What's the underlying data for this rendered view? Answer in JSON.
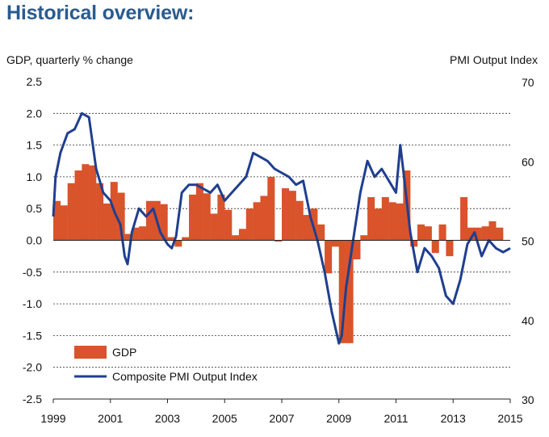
{
  "header": {
    "title": "Historical overview:"
  },
  "chart_data": {
    "type": "bar+line",
    "y_left_label": "GDP, quarterly % change",
    "y_right_label": "PMI Output  Index",
    "ylim_left": [
      -2.5,
      2.5
    ],
    "ylim_right": [
      30,
      70
    ],
    "xlim": [
      1999,
      2015
    ],
    "x_ticks": [
      1999,
      2001,
      2003,
      2005,
      2007,
      2009,
      2011,
      2013,
      2015
    ],
    "y_left_ticks": [
      "2.5",
      "2.0",
      "1.5",
      "1.0",
      "0.5",
      "0.0",
      "-0.5",
      "-1.0",
      "-1.5",
      "-2.0",
      "-2.5"
    ],
    "y_right_ticks": [
      "70",
      "60",
      "50",
      "40",
      "30"
    ],
    "grid": "horizontal dashed",
    "legend": {
      "position": "bottom-left",
      "gdp_label": "GDP",
      "pmi_label": "Composite PMI Output Index"
    },
    "colors": {
      "gdp": "#d9532b",
      "pmi": "#1f3f8e",
      "title": "#2a5b8f"
    },
    "series": [
      {
        "name": "GDP",
        "kind": "bar",
        "axis": "left",
        "start": 1999,
        "frequency": "quarterly",
        "values": [
          0.62,
          0.55,
          0.9,
          1.1,
          1.2,
          1.18,
          0.9,
          0.58,
          0.92,
          0.75,
          0.1,
          0.2,
          0.22,
          0.62,
          0.62,
          0.57,
          0.05,
          -0.1,
          0.05,
          0.72,
          0.9,
          0.74,
          0.42,
          0.72,
          0.48,
          0.08,
          0.18,
          0.5,
          0.6,
          0.7,
          1.0,
          -0.02,
          0.82,
          0.78,
          0.62,
          0.4,
          0.5,
          0.25,
          -0.52,
          -0.1,
          -1.62,
          -1.62,
          -0.3,
          0.08,
          0.68,
          0.5,
          0.68,
          0.6,
          0.58,
          1.1,
          -0.1,
          0.25,
          0.22,
          -0.2,
          0.25,
          -0.25,
          0.0,
          0.68,
          0.2,
          0.2,
          0.22,
          0.3,
          0.2
        ]
      },
      {
        "name": "Composite PMI Output Index",
        "kind": "line",
        "axis": "right",
        "x": [
          1999.0,
          1999.08,
          1999.25,
          1999.5,
          1999.75,
          2000.0,
          2000.25,
          2000.5,
          2000.75,
          2001.0,
          2001.15,
          2001.35,
          2001.5,
          2001.6,
          2001.75,
          2002.0,
          2002.25,
          2002.5,
          2002.75,
          2003.0,
          2003.15,
          2003.3,
          2003.5,
          2003.75,
          2004.0,
          2004.25,
          2004.5,
          2004.75,
          2005.0,
          2005.25,
          2005.5,
          2005.75,
          2006.0,
          2006.25,
          2006.5,
          2006.75,
          2007.0,
          2007.25,
          2007.5,
          2007.75,
          2008.0,
          2008.25,
          2008.5,
          2008.75,
          2009.0,
          2009.1,
          2009.25,
          2009.5,
          2009.75,
          2010.0,
          2010.25,
          2010.5,
          2010.75,
          2011.0,
          2011.15,
          2011.25,
          2011.5,
          2011.75,
          2012.0,
          2012.25,
          2012.5,
          2012.75,
          2013.0,
          2013.25,
          2013.5,
          2013.75,
          2014.0,
          2014.25,
          2014.5,
          2014.75,
          2015.0
        ],
        "values": [
          53,
          58,
          61,
          63.5,
          64,
          66,
          65.5,
          59,
          56,
          55,
          53.5,
          52,
          48,
          47,
          51,
          54,
          53,
          54,
          51,
          49.5,
          49,
          50.5,
          56,
          57,
          57,
          56.5,
          56,
          57,
          55,
          56,
          57,
          58,
          61,
          60.5,
          60,
          59,
          58.5,
          58,
          57,
          57.5,
          53,
          50,
          46,
          41,
          37,
          38,
          44,
          50,
          56,
          60,
          58,
          59,
          57.5,
          56,
          62,
          59,
          51,
          46,
          49,
          48,
          46.5,
          43,
          42,
          45,
          49.5,
          51,
          48,
          50,
          49,
          48.5,
          49
        ]
      }
    ]
  }
}
